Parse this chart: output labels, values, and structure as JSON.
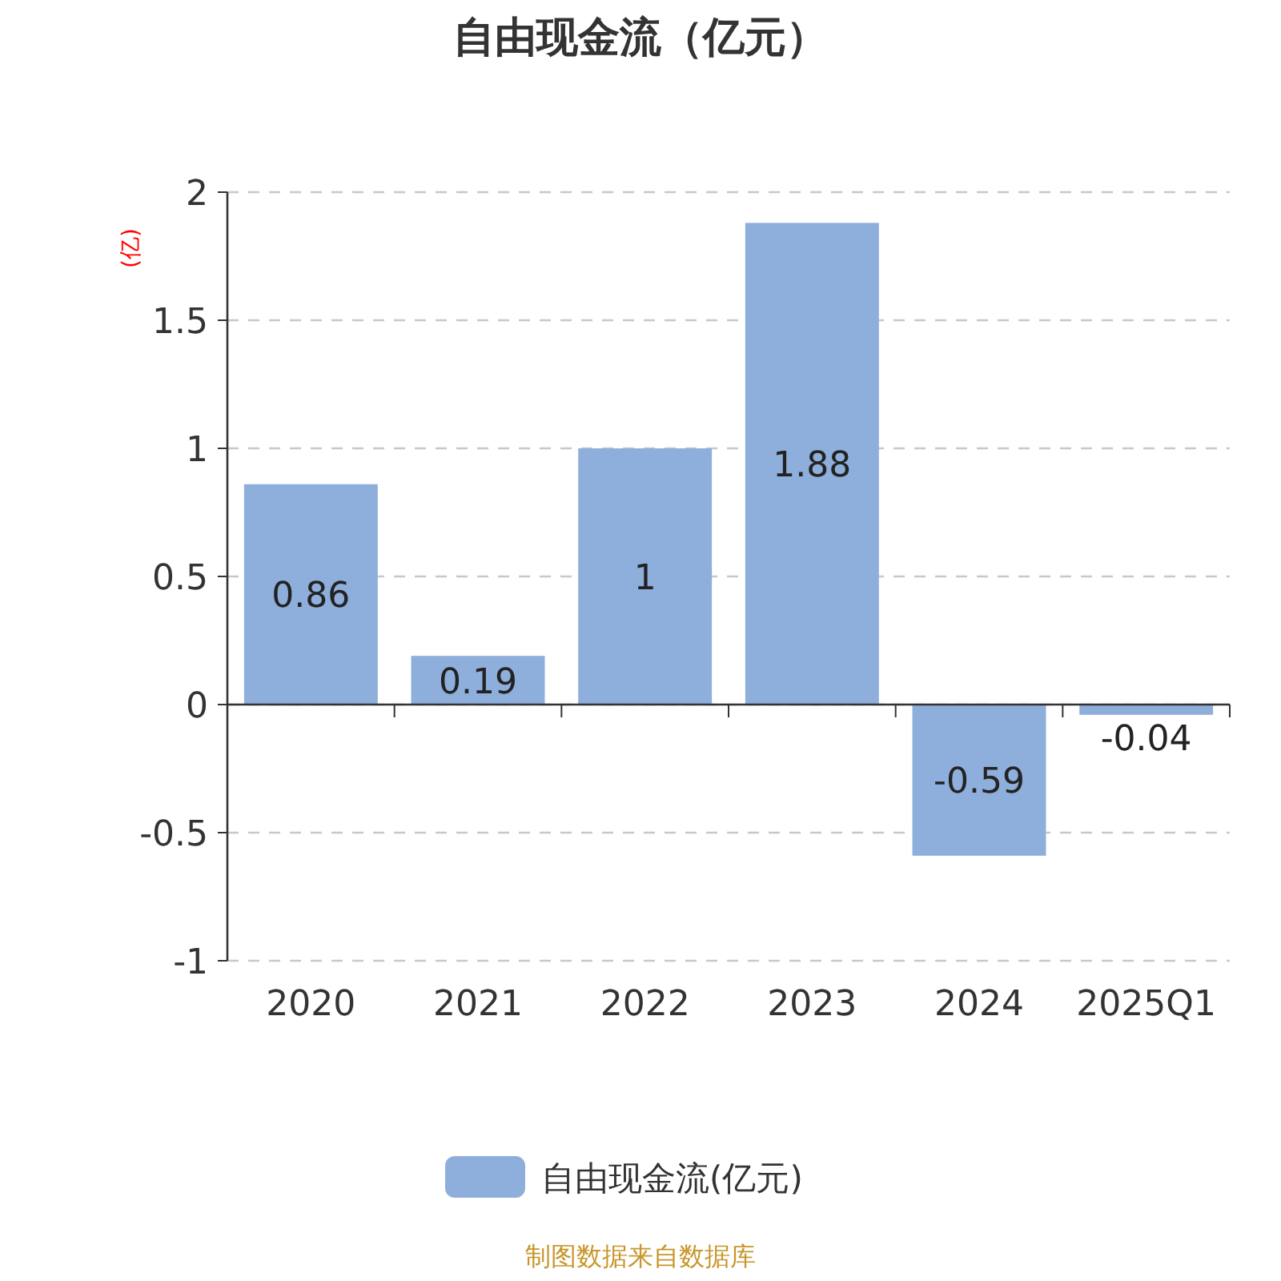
{
  "chart_data": {
    "type": "bar",
    "title": "自由现金流（亿元）",
    "ylabel": "(亿)",
    "categories": [
      "2020",
      "2021",
      "2022",
      "2023",
      "2024",
      "2025Q1"
    ],
    "series": [
      {
        "name": "自由现金流(亿元)",
        "color": "#8eaedb",
        "values": [
          0.86,
          0.19,
          1,
          1.88,
          -0.59,
          -0.04
        ]
      }
    ],
    "ylim": [
      -1,
      2
    ],
    "yticks": [
      -1,
      -0.5,
      0,
      0.5,
      1,
      1.5,
      2
    ],
    "grid": "y",
    "legend": "bottom",
    "data_labels": true,
    "annotations": [
      "制图数据来自数据库"
    ]
  }
}
